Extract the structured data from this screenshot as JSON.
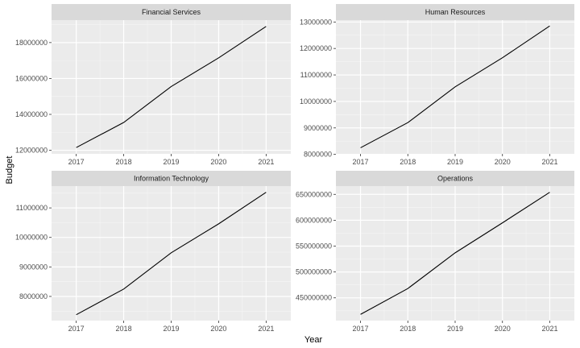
{
  "chart_data": {
    "type": "line",
    "xlabel": "Year",
    "ylabel": "Budget",
    "grid": true,
    "x": [
      2017,
      2018,
      2019,
      2020,
      2021
    ],
    "facets": [
      {
        "title": "Financial Services",
        "values": [
          12150000,
          13550000,
          15550000,
          17150000,
          18900000
        ],
        "ylim": [
          11800000,
          19250000
        ],
        "yticks": [
          12000000,
          14000000,
          16000000,
          18000000
        ],
        "ytick_labels": [
          "12000000",
          "14000000",
          "16000000",
          "18000000"
        ]
      },
      {
        "title": "Human Resources",
        "values": [
          8250000,
          9200000,
          10550000,
          11650000,
          12850000
        ],
        "ylim": [
          8020000,
          13070000
        ],
        "yticks": [
          8000000,
          9000000,
          10000000,
          11000000,
          12000000,
          13000000
        ],
        "ytick_labels": [
          "8000000",
          "9000000",
          "10000000",
          "11000000",
          "12000000",
          "13000000"
        ]
      },
      {
        "title": "Information Technology",
        "values": [
          7380000,
          8250000,
          9480000,
          10460000,
          11530000
        ],
        "ylim": [
          7180000,
          11740000
        ],
        "yticks": [
          8000000,
          9000000,
          10000000,
          11000000
        ],
        "ytick_labels": [
          "8000000",
          "9000000",
          "10000000",
          "11000000"
        ]
      },
      {
        "title": "Operations",
        "values": [
          418000000,
          468000000,
          537000000,
          595000000,
          654000000
        ],
        "ylim": [
          406000000,
          666000000
        ],
        "yticks": [
          450000000,
          500000000,
          550000000,
          600000000,
          650000000
        ],
        "ytick_labels": [
          "450000000",
          "500000000",
          "550000000",
          "600000000",
          "650000000"
        ]
      }
    ]
  }
}
